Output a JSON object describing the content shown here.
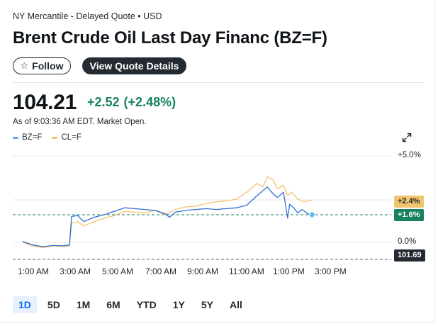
{
  "header": {
    "exchange": "NY Mercantile - Delayed Quote • USD",
    "title": "Brent Crude Oil Last Day Financ (BZ=F)",
    "follow_label": "Follow",
    "quote_details_label": "View Quote Details"
  },
  "quote": {
    "price": "104.21",
    "change": "+2.52",
    "change_pct": "(+2.48%)",
    "as_of": "As of 9:03:36 AM EDT. Market Open."
  },
  "icons": {
    "follow": "star-outline-icon",
    "expand": "expand-arrows-icon"
  },
  "colors": {
    "up_green": "#168260",
    "bz_series": "#2e6fd6",
    "cl_series": "#f2c46d",
    "active_range": "#0f69ff"
  },
  "chart_data": {
    "type": "line",
    "x_ticks": [
      "1:00 AM",
      "3:00 AM",
      "5:00 AM",
      "7:00 AM",
      "9:00 AM",
      "11:00 AM",
      "1:00 PM",
      "3:00 PM"
    ],
    "y_ticks": [
      "+5.0%",
      "0.0%"
    ],
    "ylim": [
      -1.0,
      5.0
    ],
    "y_unit": "%",
    "series": [
      {
        "name": "BZ=F",
        "color": "#2e6fd6",
        "last_badge": "+1.6%",
        "points": [
          [
            0.0,
            0.05
          ],
          [
            0.25,
            -0.15
          ],
          [
            0.5,
            -0.25
          ],
          [
            0.75,
            -0.18
          ],
          [
            1.0,
            -0.2
          ],
          [
            1.15,
            -0.15
          ],
          [
            1.2,
            1.5
          ],
          [
            1.35,
            1.55
          ],
          [
            1.5,
            1.2
          ],
          [
            1.75,
            1.45
          ],
          [
            2.0,
            1.6
          ],
          [
            2.25,
            1.8
          ],
          [
            2.5,
            2.0
          ],
          [
            2.75,
            1.95
          ],
          [
            3.0,
            1.9
          ],
          [
            3.25,
            1.85
          ],
          [
            3.5,
            1.65
          ],
          [
            3.6,
            1.45
          ],
          [
            3.75,
            1.75
          ],
          [
            4.0,
            1.85
          ],
          [
            4.25,
            1.9
          ],
          [
            4.5,
            1.95
          ],
          [
            4.75,
            1.9
          ],
          [
            5.0,
            1.95
          ],
          [
            5.25,
            2.0
          ],
          [
            5.5,
            2.15
          ],
          [
            5.75,
            2.7
          ],
          [
            6.0,
            3.2
          ],
          [
            6.15,
            2.8
          ],
          [
            6.25,
            2.6
          ],
          [
            6.4,
            2.9
          ],
          [
            6.5,
            1.4
          ],
          [
            6.55,
            2.2
          ],
          [
            6.65,
            2.0
          ],
          [
            6.75,
            1.7
          ],
          [
            6.85,
            1.9
          ],
          [
            7.0,
            1.65
          ],
          [
            7.1,
            1.6
          ]
        ],
        "last_value_badge": "101.69"
      },
      {
        "name": "CL=F",
        "color": "#f2c46d",
        "last_badge": "+2.4%",
        "points": [
          [
            0.0,
            0.0
          ],
          [
            0.25,
            -0.2
          ],
          [
            0.5,
            -0.3
          ],
          [
            0.75,
            -0.2
          ],
          [
            1.0,
            -0.25
          ],
          [
            1.15,
            -0.2
          ],
          [
            1.2,
            1.1
          ],
          [
            1.35,
            1.2
          ],
          [
            1.5,
            0.95
          ],
          [
            1.75,
            1.2
          ],
          [
            2.0,
            1.4
          ],
          [
            2.25,
            1.55
          ],
          [
            2.5,
            1.8
          ],
          [
            2.75,
            1.75
          ],
          [
            3.0,
            1.7
          ],
          [
            3.25,
            1.85
          ],
          [
            3.5,
            1.6
          ],
          [
            3.75,
            1.9
          ],
          [
            4.0,
            2.05
          ],
          [
            4.25,
            2.1
          ],
          [
            4.5,
            2.25
          ],
          [
            4.75,
            2.35
          ],
          [
            5.0,
            2.4
          ],
          [
            5.25,
            2.5
          ],
          [
            5.5,
            2.9
          ],
          [
            5.75,
            3.4
          ],
          [
            5.9,
            3.2
          ],
          [
            6.0,
            3.8
          ],
          [
            6.15,
            3.6
          ],
          [
            6.25,
            3.1
          ],
          [
            6.4,
            3.3
          ],
          [
            6.5,
            2.7
          ],
          [
            6.6,
            2.9
          ],
          [
            6.75,
            2.5
          ],
          [
            6.9,
            2.35
          ],
          [
            7.0,
            2.4
          ],
          [
            7.1,
            2.4
          ]
        ]
      }
    ],
    "reference_line_badge": "101.69",
    "grid": true
  },
  "ranges": [
    "1D",
    "5D",
    "1M",
    "6M",
    "YTD",
    "1Y",
    "5Y",
    "All"
  ],
  "active_range": "1D"
}
